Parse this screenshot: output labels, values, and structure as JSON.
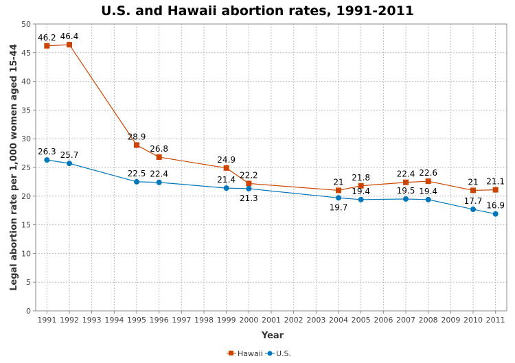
{
  "chart_data": {
    "type": "line",
    "title": "U.S. and Hawaii abortion rates, 1991-2011",
    "xlabel": "Year",
    "ylabel": "Legal abortion rate per 1,000 women aged 15-44",
    "ylim": [
      0,
      50
    ],
    "yticks": [
      0,
      5,
      10,
      15,
      20,
      25,
      30,
      35,
      40,
      45,
      50
    ],
    "categories": [
      "1991",
      "1992",
      "1993",
      "1994",
      "1995",
      "1996",
      "1997",
      "1998",
      "1999",
      "2000",
      "2001",
      "2002",
      "2003",
      "2004",
      "2005",
      "2006",
      "2007",
      "2008",
      "2009",
      "2010",
      "2011"
    ],
    "grid": true,
    "legend": "bottom",
    "series": [
      {
        "name": "Hawaii",
        "color": "#cc4400",
        "marker": "square",
        "points": [
          [
            "1991",
            46.2
          ],
          [
            "1992",
            46.4
          ],
          [
            "1995",
            28.9
          ],
          [
            "1996",
            26.8
          ],
          [
            "1999",
            24.9
          ],
          [
            "2000",
            22.2
          ],
          [
            "2004",
            21
          ],
          [
            "2005",
            21.8
          ],
          [
            "2007",
            22.4
          ],
          [
            "2008",
            22.6
          ],
          [
            "2010",
            21
          ],
          [
            "2011",
            21.1
          ]
        ]
      },
      {
        "name": "U.S.",
        "color": "#0077bb",
        "marker": "circle",
        "points": [
          [
            "1991",
            26.3
          ],
          [
            "1992",
            25.7
          ],
          [
            "1995",
            22.5
          ],
          [
            "1996",
            22.4
          ],
          [
            "1999",
            21.4
          ],
          [
            "2000",
            21.3
          ],
          [
            "2004",
            19.7
          ],
          [
            "2005",
            19.4
          ],
          [
            "2007",
            19.5
          ],
          [
            "2008",
            19.4
          ],
          [
            "2010",
            17.7
          ],
          [
            "2011",
            16.9
          ]
        ]
      }
    ]
  }
}
